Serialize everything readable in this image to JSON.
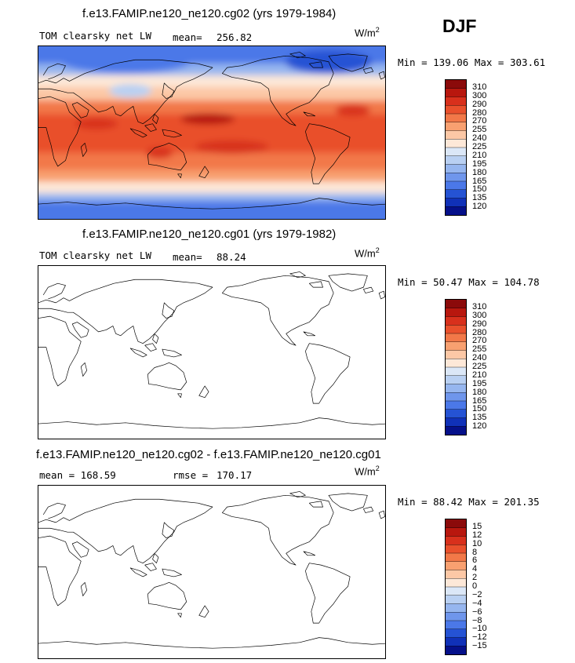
{
  "season": "DJF",
  "chart_data": [
    {
      "type": "heatmap",
      "title": "f.e13.FAMIP.ne120_ne120.cg02 (yrs 1979-1984)",
      "left_label": "TOM clearsky net LW",
      "stat_label": "mean=",
      "stat_value": "256.82",
      "units_base": "W/m",
      "units_exp": "2",
      "min_max": "Min = 139.06 Max = 303.61",
      "filled": true,
      "levels": [
        "310",
        "300",
        "290",
        "280",
        "270",
        "255",
        "240",
        "225",
        "210",
        "195",
        "180",
        "165",
        "150",
        "135",
        "120"
      ],
      "colors": [
        "#8b0a0a",
        "#b8170e",
        "#d8301c",
        "#e9502c",
        "#f27848",
        "#f8a070",
        "#fcc8a6",
        "#fde8d8",
        "#dbe7f7",
        "#b9d0f2",
        "#96b6ef",
        "#6f96ec",
        "#4b78e8",
        "#2553d4",
        "#1031b8",
        "#05108a"
      ]
    },
    {
      "type": "heatmap",
      "title": "f.e13.FAMIP.ne120_ne120.cg01 (yrs 1979-1982)",
      "left_label": "TOM clearsky net LW",
      "stat_label": "mean=",
      "stat_value": "88.24",
      "units_base": "W/m",
      "units_exp": "2",
      "min_max": "Min =  50.47 Max = 104.78",
      "filled": false,
      "levels": [
        "310",
        "300",
        "290",
        "280",
        "270",
        "255",
        "240",
        "225",
        "210",
        "195",
        "180",
        "165",
        "150",
        "135",
        "120"
      ],
      "colors": [
        "#8b0a0a",
        "#b8170e",
        "#d8301c",
        "#e9502c",
        "#f27848",
        "#f8a070",
        "#fcc8a6",
        "#fde8d8",
        "#dbe7f7",
        "#b9d0f2",
        "#96b6ef",
        "#6f96ec",
        "#4b78e8",
        "#2553d4",
        "#1031b8",
        "#05108a"
      ]
    },
    {
      "type": "heatmap",
      "title": "f.e13.FAMIP.ne120_ne120.cg02 - f.e13.FAMIP.ne120_ne120.cg01",
      "left_label": "mean = 168.59",
      "stat_label": "rmse =",
      "stat_value": "170.17",
      "units_base": "W/m",
      "units_exp": "2",
      "min_max": "Min =  88.42 Max = 201.35",
      "filled": false,
      "levels": [
        "15",
        "12",
        "10",
        "8",
        "6",
        "4",
        "2",
        "0",
        "−2",
        "−4",
        "−6",
        "−8",
        "−10",
        "−12",
        "−15"
      ],
      "colors": [
        "#8b0a0a",
        "#b8170e",
        "#d8301c",
        "#e9502c",
        "#f27848",
        "#f8a070",
        "#fcc8a6",
        "#fde8d8",
        "#dbe7f7",
        "#b9d0f2",
        "#96b6ef",
        "#6f96ec",
        "#4b78e8",
        "#2553d4",
        "#1031b8",
        "#05108a"
      ]
    }
  ]
}
